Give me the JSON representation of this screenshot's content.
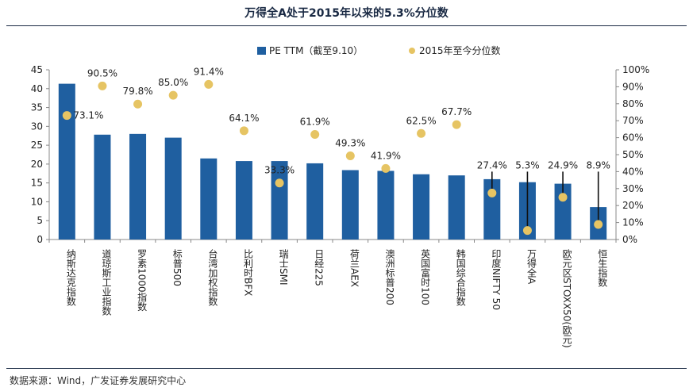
{
  "page": {
    "title": "万得全A处于2015年以来的5.3%分位数",
    "source": "数据来源：Wind，广发证券发展研究中心"
  },
  "chart_data": {
    "type": "bar",
    "categories": [
      "纳斯达克指数",
      "道琼斯工业指数",
      "罗素1000指数",
      "标普500",
      "台湾加权指数",
      "比利时BFX",
      "瑞士SMI",
      "日经225",
      "荷兰AEX",
      "澳洲标普200",
      "英国富时100",
      "韩国综合指数",
      "印度NIFTY 50",
      "万得全A",
      "欧元区STOXX50(欧元)",
      "恒生指数"
    ],
    "series": [
      {
        "name": "PE TTM（截至9.10）",
        "type": "bar",
        "axis": "left",
        "color": "#1f5fa0",
        "values": [
          41.3,
          27.8,
          28.0,
          27.0,
          21.5,
          20.8,
          20.8,
          20.2,
          18.4,
          18.2,
          17.3,
          17.0,
          16.0,
          15.2,
          14.8,
          8.6
        ]
      },
      {
        "name": "2015年至今分位数",
        "type": "scatter",
        "axis": "right",
        "color": "#e6c463",
        "values": [
          73.1,
          90.5,
          79.8,
          85.0,
          91.4,
          64.1,
          33.3,
          61.9,
          49.3,
          41.9,
          62.5,
          67.7,
          27.4,
          5.3,
          24.9,
          8.9
        ],
        "labels": [
          "73.1%",
          "90.5%",
          "79.8%",
          "85.0%",
          "91.4%",
          "64.1%",
          "33.3%",
          "61.9%",
          "49.3%",
          "41.9%",
          "62.5%",
          "67.7%",
          "27.4%",
          "5.3%",
          "24.9%",
          "8.9%"
        ]
      }
    ],
    "y_left": {
      "min": 0,
      "max": 45,
      "ticks": [
        "0",
        "5",
        "10",
        "15",
        "20",
        "25",
        "30",
        "35",
        "40",
        "45"
      ]
    },
    "y_right": {
      "min": 0,
      "max": 100,
      "ticks": [
        "0%",
        "10%",
        "20%",
        "30%",
        "40%",
        "50%",
        "60%",
        "70%",
        "80%",
        "90%",
        "100%"
      ]
    },
    "legend_position": "top-center",
    "grid": false
  }
}
